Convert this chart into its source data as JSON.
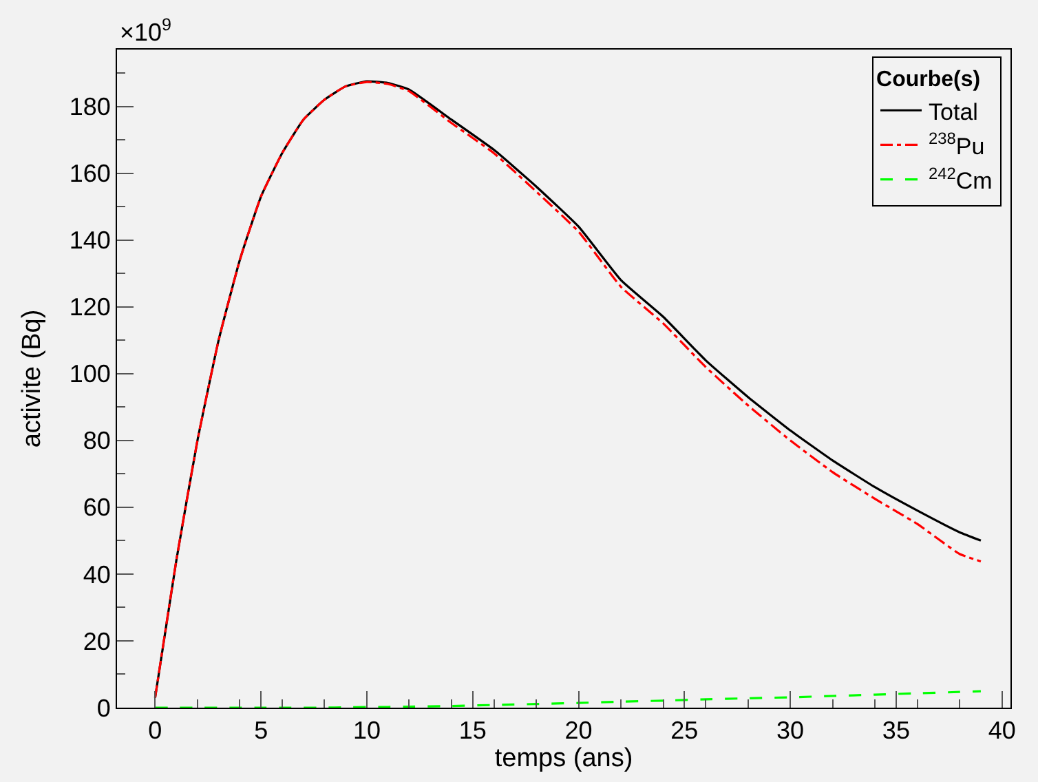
{
  "chart_data": {
    "type": "line",
    "xlabel": "temps (ans)",
    "ylabel": "activite (Bq)",
    "legend_title": "Courbe(s)",
    "annotations": [
      "×10$^{9}$"
    ],
    "x": [
      0,
      1,
      2,
      3,
      4,
      5,
      6,
      7,
      8,
      9,
      10,
      11,
      12,
      14,
      16,
      18,
      20,
      22,
      24,
      26,
      28,
      30,
      32,
      34,
      36,
      38,
      39
    ],
    "series": [
      {
        "name": "Total",
        "color": "#000000",
        "line_style": "solid",
        "values": [
          3,
          44,
          80,
          110,
          134,
          153,
          166,
          176,
          182,
          186,
          187.5,
          187,
          185,
          176,
          167,
          156,
          144,
          128,
          117,
          104,
          93,
          83,
          74,
          66,
          59,
          52.5,
          50
        ]
      },
      {
        "name": "$^{238}$Pu",
        "color": "#ff0000",
        "line_style": "dashdot",
        "values": [
          3,
          44,
          80,
          110,
          134,
          153,
          166,
          176,
          182,
          186,
          187.3,
          186.7,
          184.5,
          175,
          166,
          154.5,
          142.5,
          126,
          115,
          102,
          90.5,
          80,
          70.5,
          62.5,
          55,
          46,
          43.8
        ]
      },
      {
        "name": "$^{242}$Cm",
        "color": "#00ff00",
        "line_style": "dashed",
        "values": [
          0,
          0,
          0,
          0,
          0,
          0,
          0,
          0,
          0,
          0.1,
          0.2,
          0.2,
          0.3,
          0.5,
          0.8,
          1.1,
          1.4,
          1.8,
          2.1,
          2.5,
          2.8,
          3.1,
          3.5,
          3.9,
          4.3,
          4.7,
          4.9
        ]
      }
    ],
    "xlim": [
      -1.8,
      40.4
    ],
    "ylim": [
      0,
      197
    ],
    "xticks": [
      0,
      5,
      10,
      15,
      20,
      25,
      30,
      35,
      40
    ],
    "yticks": [
      0,
      20,
      40,
      60,
      80,
      100,
      120,
      140,
      160,
      180
    ],
    "grid": false,
    "legend": "top right",
    "marker": "none"
  }
}
